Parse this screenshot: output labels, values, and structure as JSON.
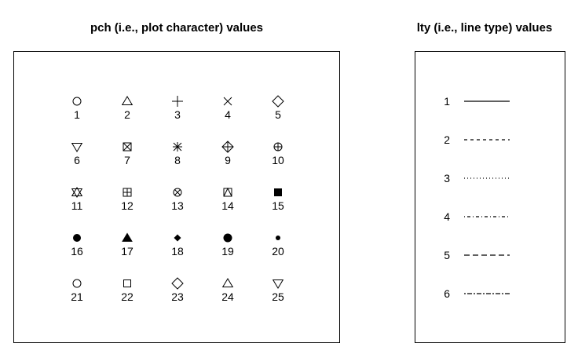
{
  "pch_panel": {
    "title": "pch (i.e., plot character) values",
    "symbols": [
      {
        "value": "1",
        "shape": "circle-open-icon"
      },
      {
        "value": "2",
        "shape": "triangle-up-open-icon"
      },
      {
        "value": "3",
        "shape": "plus-icon"
      },
      {
        "value": "4",
        "shape": "cross-x-icon"
      },
      {
        "value": "5",
        "shape": "diamond-open-icon"
      },
      {
        "value": "6",
        "shape": "triangle-down-open-icon"
      },
      {
        "value": "7",
        "shape": "square-cross-icon"
      },
      {
        "value": "8",
        "shape": "asterisk-icon"
      },
      {
        "value": "9",
        "shape": "diamond-plus-icon"
      },
      {
        "value": "10",
        "shape": "circle-plus-icon"
      },
      {
        "value": "11",
        "shape": "star-of-david-icon"
      },
      {
        "value": "12",
        "shape": "square-plus-icon"
      },
      {
        "value": "13",
        "shape": "circle-cross-icon"
      },
      {
        "value": "14",
        "shape": "square-triangle-icon"
      },
      {
        "value": "15",
        "shape": "square-filled-icon"
      },
      {
        "value": "16",
        "shape": "circle-filled-icon"
      },
      {
        "value": "17",
        "shape": "triangle-filled-icon"
      },
      {
        "value": "18",
        "shape": "diamond-filled-small-icon"
      },
      {
        "value": "19",
        "shape": "circle-filled-large-icon"
      },
      {
        "value": "20",
        "shape": "circle-filled-small-icon"
      },
      {
        "value": "21",
        "shape": "circle-open-icon"
      },
      {
        "value": "22",
        "shape": "square-open-icon"
      },
      {
        "value": "23",
        "shape": "diamond-open-icon"
      },
      {
        "value": "24",
        "shape": "triangle-up-open-icon"
      },
      {
        "value": "25",
        "shape": "triangle-down-open-icon"
      }
    ]
  },
  "lty_panel": {
    "title": "lty (i.e., line type) values",
    "lines": [
      {
        "value": "1",
        "style": "solid"
      },
      {
        "value": "2",
        "style": "dashed"
      },
      {
        "value": "3",
        "style": "dotted"
      },
      {
        "value": "4",
        "style": "dotdash"
      },
      {
        "value": "5",
        "style": "longdash"
      },
      {
        "value": "6",
        "style": "twodash"
      }
    ]
  }
}
